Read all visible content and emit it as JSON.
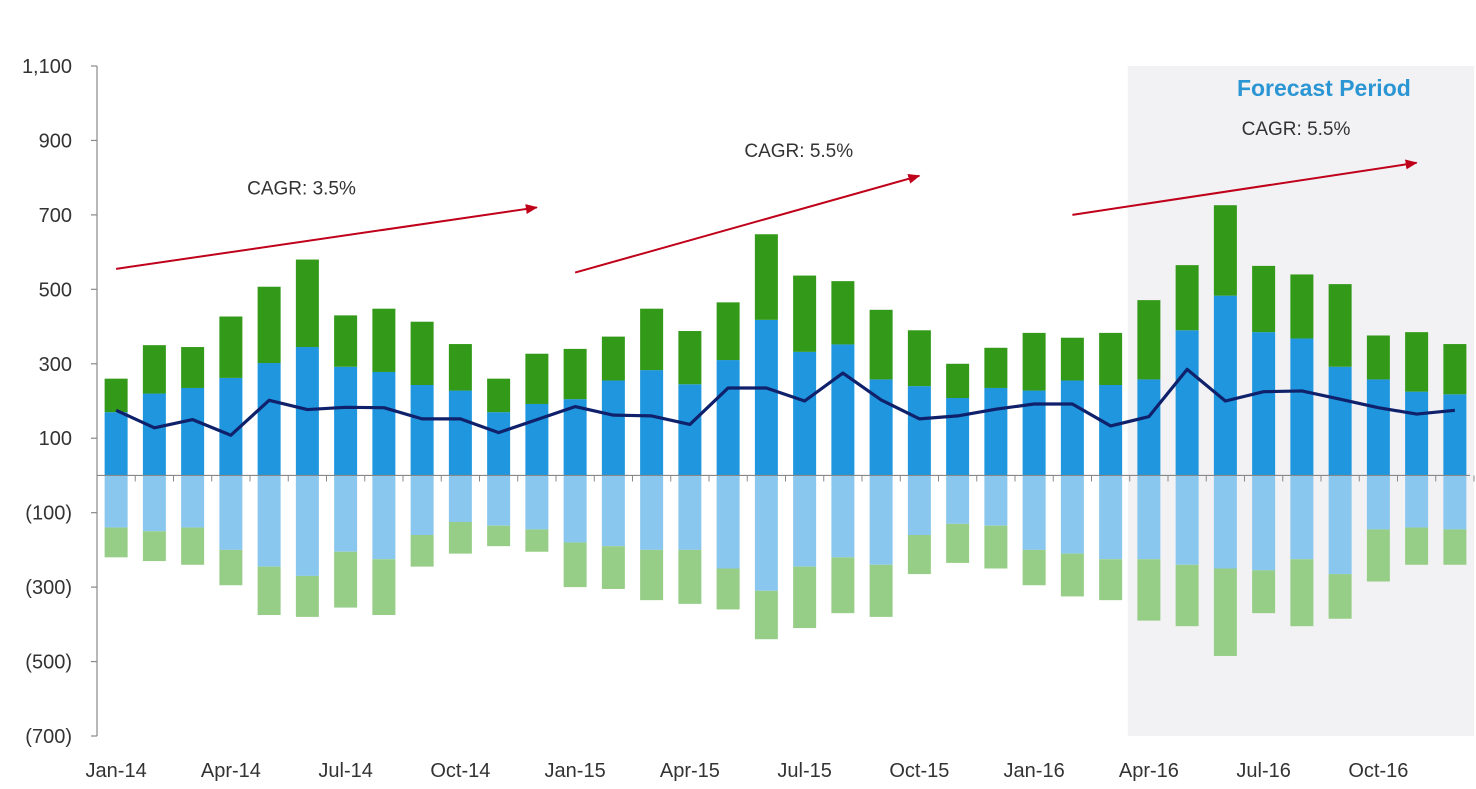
{
  "colors": {
    "pos_lower": "#1f96dd",
    "pos_upper": "#339919",
    "neg_lower": "#8ac7ee",
    "neg_upper": "#97ce87",
    "line": "#10216b",
    "arrow": "#c0001a",
    "forecast_bg": "#f2f2f4",
    "forecast_text": "#2b96d3",
    "axis": "#888888"
  },
  "chart_data": {
    "type": "bar",
    "stacked": true,
    "categories": [
      "Jan-14",
      "Feb-14",
      "Mar-14",
      "Apr-14",
      "May-14",
      "Jun-14",
      "Jul-14",
      "Aug-14",
      "Sep-14",
      "Oct-14",
      "Nov-14",
      "Dec-14",
      "Jan-15",
      "Feb-15",
      "Mar-15",
      "Apr-15",
      "May-15",
      "Jun-15",
      "Jul-15",
      "Aug-15",
      "Sep-15",
      "Oct-15",
      "Nov-15",
      "Dec-15",
      "Jan-16",
      "Feb-16",
      "Mar-16",
      "Apr-16",
      "May-16",
      "Jun-16",
      "Jul-16",
      "Aug-16",
      "Sep-16",
      "Oct-16",
      "Nov-16",
      "Dec-16"
    ],
    "x_tick_labels": [
      "Jan-14",
      "Apr-14",
      "Jul-14",
      "Oct-14",
      "Jan-15",
      "Apr-15",
      "Jul-15",
      "Oct-15",
      "Jan-16",
      "Apr-16",
      "Jul-16",
      "Oct-16"
    ],
    "x_tick_every": 3,
    "y_tick_labels": [
      "1,100",
      "900",
      "700",
      "500",
      "300",
      "100",
      "(100)",
      "(300)",
      "(500)",
      "(700)"
    ],
    "y_tick_values": [
      1100,
      900,
      700,
      500,
      300,
      100,
      -100,
      -300,
      -500,
      -700
    ],
    "ylim": [
      -700,
      1100
    ],
    "zero_line": true,
    "grid": false,
    "series": [
      {
        "role": "pos_lower",
        "values": [
          170,
          220,
          235,
          262,
          302,
          345,
          292,
          278,
          243,
          228,
          170,
          192,
          205,
          255,
          283,
          245,
          310,
          418,
          332,
          352,
          258,
          240,
          208,
          235,
          228,
          255,
          243,
          258,
          390,
          483,
          385,
          368,
          292,
          258,
          225,
          218
        ]
      },
      {
        "role": "pos_upper",
        "values": [
          90,
          130,
          110,
          165,
          205,
          235,
          138,
          170,
          170,
          125,
          90,
          135,
          135,
          118,
          165,
          143,
          155,
          230,
          205,
          170,
          187,
          150,
          92,
          108,
          155,
          115,
          140,
          213,
          175,
          243,
          178,
          172,
          222,
          118,
          160,
          135
        ]
      },
      {
        "role": "neg_lower",
        "values": [
          -140,
          -150,
          -140,
          -200,
          -245,
          -270,
          -205,
          -225,
          -160,
          -125,
          -135,
          -145,
          -180,
          -190,
          -200,
          -200,
          -250,
          -310,
          -245,
          -220,
          -240,
          -160,
          -130,
          -135,
          -200,
          -210,
          -225,
          -225,
          -240,
          -250,
          -255,
          -225,
          -265,
          -145,
          -140,
          -145
        ]
      },
      {
        "role": "neg_upper",
        "values": [
          -80,
          -80,
          -100,
          -95,
          -130,
          -110,
          -150,
          -150,
          -85,
          -85,
          -55,
          -60,
          -120,
          -115,
          -135,
          -145,
          -110,
          -130,
          -165,
          -150,
          -140,
          -105,
          -105,
          -115,
          -95,
          -115,
          -110,
          -165,
          -165,
          -235,
          -115,
          -180,
          -120,
          -140,
          -100,
          -95
        ]
      },
      {
        "type": "line",
        "role": "line",
        "values": [
          175,
          128,
          150,
          108,
          202,
          177,
          183,
          182,
          152,
          152,
          115,
          150,
          185,
          162,
          160,
          137,
          235,
          235,
          200,
          275,
          203,
          152,
          160,
          178,
          192,
          192,
          133,
          158,
          285,
          200,
          225,
          227,
          205,
          182,
          165,
          175
        ]
      }
    ],
    "forecast": {
      "label": "Forecast Period",
      "start": "Apr-16",
      "end": "Dec-16"
    },
    "annotations": [
      {
        "text": "CAGR: 3.5%",
        "from": [
          "Jan-14",
          555
        ],
        "to": [
          "Dec-14",
          720
        ],
        "anchor": [
          "May-14",
          755
        ]
      },
      {
        "text": "CAGR: 5.5%",
        "from": [
          "Jan-15",
          545
        ],
        "to": [
          "Oct-15",
          805
        ],
        "anchor": [
          "Jun-15",
          855
        ]
      },
      {
        "text": "CAGR: 5.5%",
        "from": [
          "Feb-16",
          700
        ],
        "to": [
          "Nov-16",
          840
        ],
        "anchor": [
          "Jul-16",
          915
        ]
      }
    ]
  }
}
